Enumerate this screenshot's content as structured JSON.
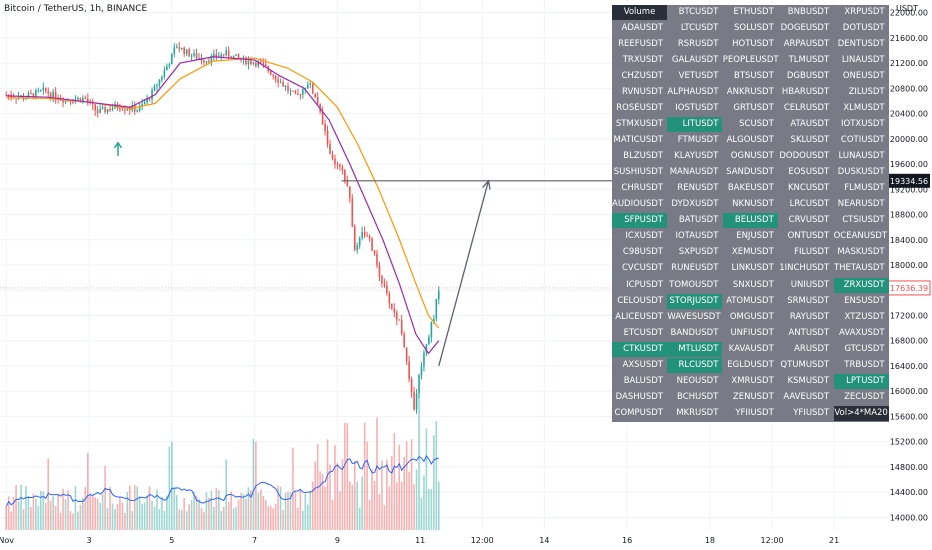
{
  "header": {
    "title": "Bitcoin / TetherUS, 1h, BINANCE",
    "unit": "USDT"
  },
  "chart_data": {
    "type": "candlestick",
    "title": "Bitcoin / TetherUS, 1h, BINANCE",
    "ylabel": "USDT",
    "ylim": [
      13800,
      22200
    ],
    "y_ticks": [
      14000,
      14400,
      14800,
      15200,
      15600,
      16000,
      16400,
      16800,
      17200,
      17600,
      18000,
      18400,
      18800,
      19200,
      19600,
      20000,
      20400,
      20800,
      21200,
      21600,
      22000
    ],
    "y_tick_labels": [
      "14000.00",
      "14400.00",
      "14800.00",
      "15200.00",
      "15600.00",
      "16000.00",
      "16400.00",
      "16800.00",
      "17200.00",
      "17600.00",
      "18000.00",
      "18400.00",
      "18800.00",
      "19200.00",
      "19600.00",
      "20000.00",
      "20400.00",
      "20800.00",
      "21200.00",
      "21600.00",
      "22000.00"
    ],
    "x_ticks": [
      {
        "label": "Nov",
        "x": 0
      },
      {
        "label": "3",
        "x": 2
      },
      {
        "label": "5",
        "x": 4
      },
      {
        "label": "7",
        "x": 6
      },
      {
        "label": "9",
        "x": 8
      },
      {
        "label": "11",
        "x": 10
      },
      {
        "label": "12:00",
        "x": 11.5
      },
      {
        "label": "14",
        "x": 13
      },
      {
        "label": "16",
        "x": 15
      },
      {
        "label": "18",
        "x": 17
      },
      {
        "label": "12:00",
        "x": 18.5
      },
      {
        "label": "21",
        "x": 20
      }
    ],
    "xlim": [
      -0.15,
      21.35
    ],
    "price_path": [
      [
        0,
        20700
      ],
      [
        0.4,
        20650
      ],
      [
        0.9,
        20760
      ],
      [
        1.4,
        20620
      ],
      [
        1.9,
        20640
      ],
      [
        2.2,
        20420
      ],
      [
        2.7,
        20520
      ],
      [
        3.2,
        20460
      ],
      [
        3.5,
        20700
      ],
      [
        3.8,
        21050
      ],
      [
        4.0,
        21300
      ],
      [
        4.1,
        21480
      ],
      [
        4.4,
        21350
      ],
      [
        4.8,
        21250
      ],
      [
        5.3,
        21350
      ],
      [
        5.7,
        21250
      ],
      [
        6.1,
        21200
      ],
      [
        6.4,
        21050
      ],
      [
        6.7,
        20850
      ],
      [
        7.0,
        20650
      ],
      [
        7.3,
        20900
      ],
      [
        7.5,
        20600
      ],
      [
        7.7,
        20100
      ],
      [
        7.9,
        19600
      ],
      [
        8.1,
        19500
      ],
      [
        8.3,
        19100
      ],
      [
        8.4,
        18200
      ],
      [
        8.6,
        18550
      ],
      [
        8.8,
        18350
      ],
      [
        9.0,
        17900
      ],
      [
        9.2,
        17500
      ],
      [
        9.4,
        17200
      ],
      [
        9.5,
        17100
      ],
      [
        9.6,
        16800
      ],
      [
        9.7,
        16300
      ],
      [
        9.8,
        15900
      ],
      [
        9.85,
        15750
      ],
      [
        9.95,
        16150
      ],
      [
        10.05,
        16500
      ],
      [
        10.15,
        16750
      ],
      [
        10.25,
        17000
      ],
      [
        10.35,
        17250
      ],
      [
        10.45,
        17640
      ]
    ],
    "ma_fast": [
      [
        0,
        20680
      ],
      [
        1,
        20660
      ],
      [
        2,
        20580
      ],
      [
        3,
        20500
      ],
      [
        3.6,
        20700
      ],
      [
        4.2,
        21200
      ],
      [
        5,
        21300
      ],
      [
        6,
        21250
      ],
      [
        6.6,
        21000
      ],
      [
        7.2,
        20800
      ],
      [
        7.8,
        20300
      ],
      [
        8.3,
        19600
      ],
      [
        8.7,
        19000
      ],
      [
        9.1,
        18400
      ],
      [
        9.5,
        17700
      ],
      [
        9.9,
        16900
      ],
      [
        10.2,
        16600
      ],
      [
        10.45,
        16800
      ]
    ],
    "ma_slow": [
      [
        0,
        20650
      ],
      [
        1,
        20640
      ],
      [
        2,
        20580
      ],
      [
        3,
        20480
      ],
      [
        3.6,
        20560
      ],
      [
        4.2,
        20950
      ],
      [
        5,
        21230
      ],
      [
        6,
        21280
      ],
      [
        6.8,
        21120
      ],
      [
        7.4,
        20900
      ],
      [
        8.0,
        20500
      ],
      [
        8.5,
        19900
      ],
      [
        9.0,
        19200
      ],
      [
        9.5,
        18400
      ],
      [
        9.9,
        17700
      ],
      [
        10.2,
        17200
      ],
      [
        10.45,
        17000
      ]
    ],
    "horizontal_level": {
      "y": 19334.56,
      "x_from": 8.1,
      "label": "19334.56"
    },
    "last_price": {
      "y": 17636.39,
      "label": "17636.39"
    },
    "projection_arrow": {
      "from": [
        10.45,
        16400
      ],
      "to": [
        11.65,
        19334.56
      ]
    },
    "signal_arrow": {
      "x": 2.7,
      "y": 19730
    },
    "volume_scale_max": 1.0
  },
  "scanner": {
    "header": "Volume",
    "filter": "Vol>4*MA20",
    "rows": [
      [
        "Volume",
        "BTCUSDT",
        "ETHUSDT",
        "BNBUSDT",
        "XRPUSDT"
      ],
      [
        "ADAUSDT",
        "LTCUSDT",
        "SOLUSDT",
        "DOGEUSDT",
        "DOTUSDT"
      ],
      [
        "REEFUSDT",
        "RSRUSDT",
        "HOTUSDT",
        "ARPAUSDT",
        "DENTUSDT"
      ],
      [
        "TRXUSDT",
        "GALAUSDT",
        "PEOPLEUSDT",
        "TLMUSDT",
        "LINAUSDT"
      ],
      [
        "CHZUSDT",
        "VETUSDT",
        "BTSUSDT",
        "DGBUSDT",
        "ONEUSDT"
      ],
      [
        "RVNUSDT",
        "ALPHAUSDT",
        "ANKRUSDT",
        "HBARUSDT",
        "ZILUSDT"
      ],
      [
        "ROSEUSDT",
        "IOSTUSDT",
        "GRTUSDT",
        "CELRUSDT",
        "XLMUSDT"
      ],
      [
        "STMXUSDT",
        "LITUSDT",
        "SCUSDT",
        "ATAUSDT",
        "IOTXUSDT"
      ],
      [
        "MATICUSDT",
        "FTMUSDT",
        "ALGOUSDT",
        "SKLUSDT",
        "COTIUSDT"
      ],
      [
        "BLZUSDT",
        "KLAYUSDT",
        "OGNUSDT",
        "DODOUSDT",
        "LUNAUSDT"
      ],
      [
        "SUSHIUSDT",
        "MANAUSDT",
        "SANDUSDT",
        "EOSUSDT",
        "DUSKUSDT"
      ],
      [
        "CHRUSDT",
        "RENUSDT",
        "BAKEUSDT",
        "KNCUSDT",
        "FLMUSDT"
      ],
      [
        "AUDIOUSDT",
        "DYDXUSDT",
        "NKNUSDT",
        "LRCUSDT",
        "NEARUSDT"
      ],
      [
        "SFPUSDT",
        "BATUSDT",
        "BELUSDT",
        "CRVUSDT",
        "CTSIUSDT"
      ],
      [
        "ICXUSDT",
        "IOTAUSDT",
        "ENJUSDT",
        "ONTUSDT",
        "OCEANUSDT"
      ],
      [
        "C98USDT",
        "SXPUSDT",
        "XEMUSDT",
        "FILUSDT",
        "MASKUSDT"
      ],
      [
        "CVCUSDT",
        "RUNEUSDT",
        "LINKUSDT",
        "1INCHUSDT",
        "THETAUSDT"
      ],
      [
        "ICPUSDT",
        "TOMOUSDT",
        "SNXUSDT",
        "UNIUSDT",
        "ZRXUSDT"
      ],
      [
        "CELOUSDT",
        "STORJUSDT",
        "ATOMUSDT",
        "SRMUSDT",
        "ENSUSDT"
      ],
      [
        "ALICEUSDT",
        "WAVESUSDT",
        "OMGUSDT",
        "RAYUSDT",
        "XTZUSDT"
      ],
      [
        "ETCUSDT",
        "BANDUSDT",
        "UNFIUSDT",
        "ANTUSDT",
        "AVAXUSDT"
      ],
      [
        "CTKUSDT",
        "MTLUSDT",
        "KAVAUSDT",
        "ARUSDT",
        "GTCUSDT"
      ],
      [
        "AXSUSDT",
        "RLCUSDT",
        "EGLDUSDT",
        "QTUMUSDT",
        "TRBUSDT"
      ],
      [
        "BALUSDT",
        "NEOUSDT",
        "XMRUSDT",
        "KSMUSDT",
        "LPTUSDT"
      ],
      [
        "DASHUSDT",
        "BCHUSDT",
        "ZENUSDT",
        "AAVEUSDT",
        "ZECUSDT"
      ],
      [
        "COMPUSDT",
        "MKRUSDT",
        "YFIIUSDT",
        "YFIUSDT",
        "Vol>4*MA20"
      ]
    ],
    "highlighted": [
      "LITUSDT",
      "SFPUSDT",
      "BELUSDT",
      "ZRXUSDT",
      "STORJUSDT",
      "CTKUSDT",
      "MTLUSDT",
      "RLCUSDT",
      "LPTUSDT"
    ],
    "colors": {
      "panel": "#787b86",
      "highlight": "#22927a",
      "header": "#2a2e39"
    }
  },
  "colors": {
    "up": "#26a69a",
    "down": "#ef5350",
    "ma_fast": "#9c27b0",
    "ma_slow": "#ff9800",
    "level": "#5d606b",
    "last_price": "#ef5350",
    "volume_ma": "#2962ff"
  }
}
